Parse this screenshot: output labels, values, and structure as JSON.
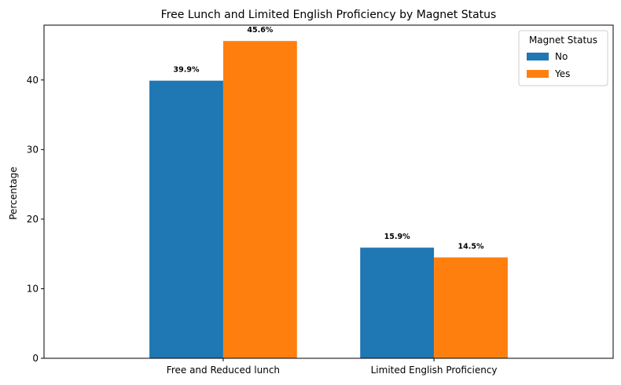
{
  "chart_data": {
    "type": "bar",
    "title": "Free Lunch and Limited English Proficiency by Magnet Status",
    "xlabel": "",
    "ylabel": "Percentage",
    "categories": [
      "Free and Reduced lunch",
      "Limited English Proficiency"
    ],
    "series": [
      {
        "name": "No",
        "values": [
          39.9,
          15.9
        ],
        "color": "#1f77b4",
        "labels": [
          "39.9%",
          "15.9%"
        ]
      },
      {
        "name": "Yes",
        "values": [
          45.6,
          14.5
        ],
        "color": "#ff7f0e",
        "labels": [
          "45.6%",
          "14.5%"
        ]
      }
    ],
    "ylim": [
      0,
      47.88
    ],
    "yticks": [
      0,
      10,
      20,
      30,
      40
    ],
    "grid": false,
    "legend": {
      "title": "Magnet Status",
      "placement": "top-right"
    }
  }
}
